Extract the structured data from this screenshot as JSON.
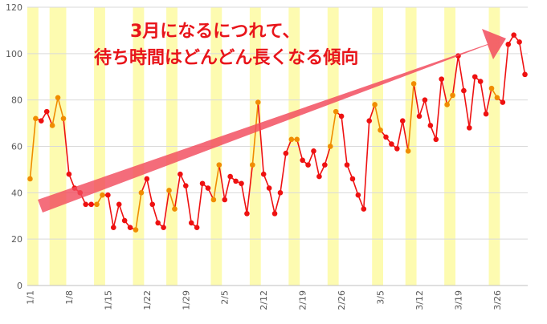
{
  "chart_data": {
    "type": "line",
    "annotation": [
      "3月になるにつれて、",
      "待ち時間はどんどん長くなる傾向"
    ],
    "ylim": [
      0,
      120
    ],
    "y_ticks": [
      0,
      20,
      40,
      60,
      80,
      100,
      120
    ],
    "x_tick_labels": [
      {
        "day": 1,
        "label": "1/1"
      },
      {
        "day": 8,
        "label": "1/8"
      },
      {
        "day": 15,
        "label": "1/15"
      },
      {
        "day": 22,
        "label": "1/22"
      },
      {
        "day": 29,
        "label": "1/29"
      },
      {
        "day": 36,
        "label": "2/5"
      },
      {
        "day": 43,
        "label": "2/12"
      },
      {
        "day": 50,
        "label": "2/19"
      },
      {
        "day": 57,
        "label": "2/26"
      },
      {
        "day": 64,
        "label": "3/5"
      },
      {
        "day": 71,
        "label": "3/12"
      },
      {
        "day": 78,
        "label": "3/19"
      },
      {
        "day": 85,
        "label": "3/26"
      }
    ],
    "grid": "horizontal",
    "highlight_bands": [
      [
        1,
        2
      ],
      [
        5,
        7
      ],
      [
        13,
        14
      ],
      [
        20,
        21
      ],
      [
        26,
        27
      ],
      [
        34,
        35
      ],
      [
        41,
        42
      ],
      [
        48,
        49
      ],
      [
        55,
        56
      ],
      [
        63,
        64
      ],
      [
        69,
        70
      ],
      [
        76,
        77
      ],
      [
        84,
        85
      ]
    ],
    "series": [
      {
        "color": "#ee1111",
        "highlight_point_color": "#f08c00",
        "values": [
          46,
          72,
          71,
          75,
          69,
          81,
          72,
          48,
          42,
          40,
          35,
          35,
          35,
          39,
          39,
          25,
          35,
          28,
          25,
          24,
          40,
          46,
          35,
          27,
          25,
          41,
          33,
          48,
          43,
          27,
          25,
          44,
          42,
          37,
          52,
          37,
          47,
          45,
          44,
          31,
          52,
          79,
          48,
          42,
          31,
          40,
          57,
          63,
          63,
          54,
          52,
          58,
          47,
          52,
          60,
          75,
          73,
          52,
          46,
          39,
          33,
          71,
          78,
          67,
          64,
          61,
          59,
          71,
          58,
          87,
          73,
          80,
          69,
          63,
          89,
          78,
          82,
          99,
          84,
          68,
          90,
          88,
          74,
          85,
          81,
          79,
          104,
          108,
          105,
          91
        ]
      }
    ]
  }
}
